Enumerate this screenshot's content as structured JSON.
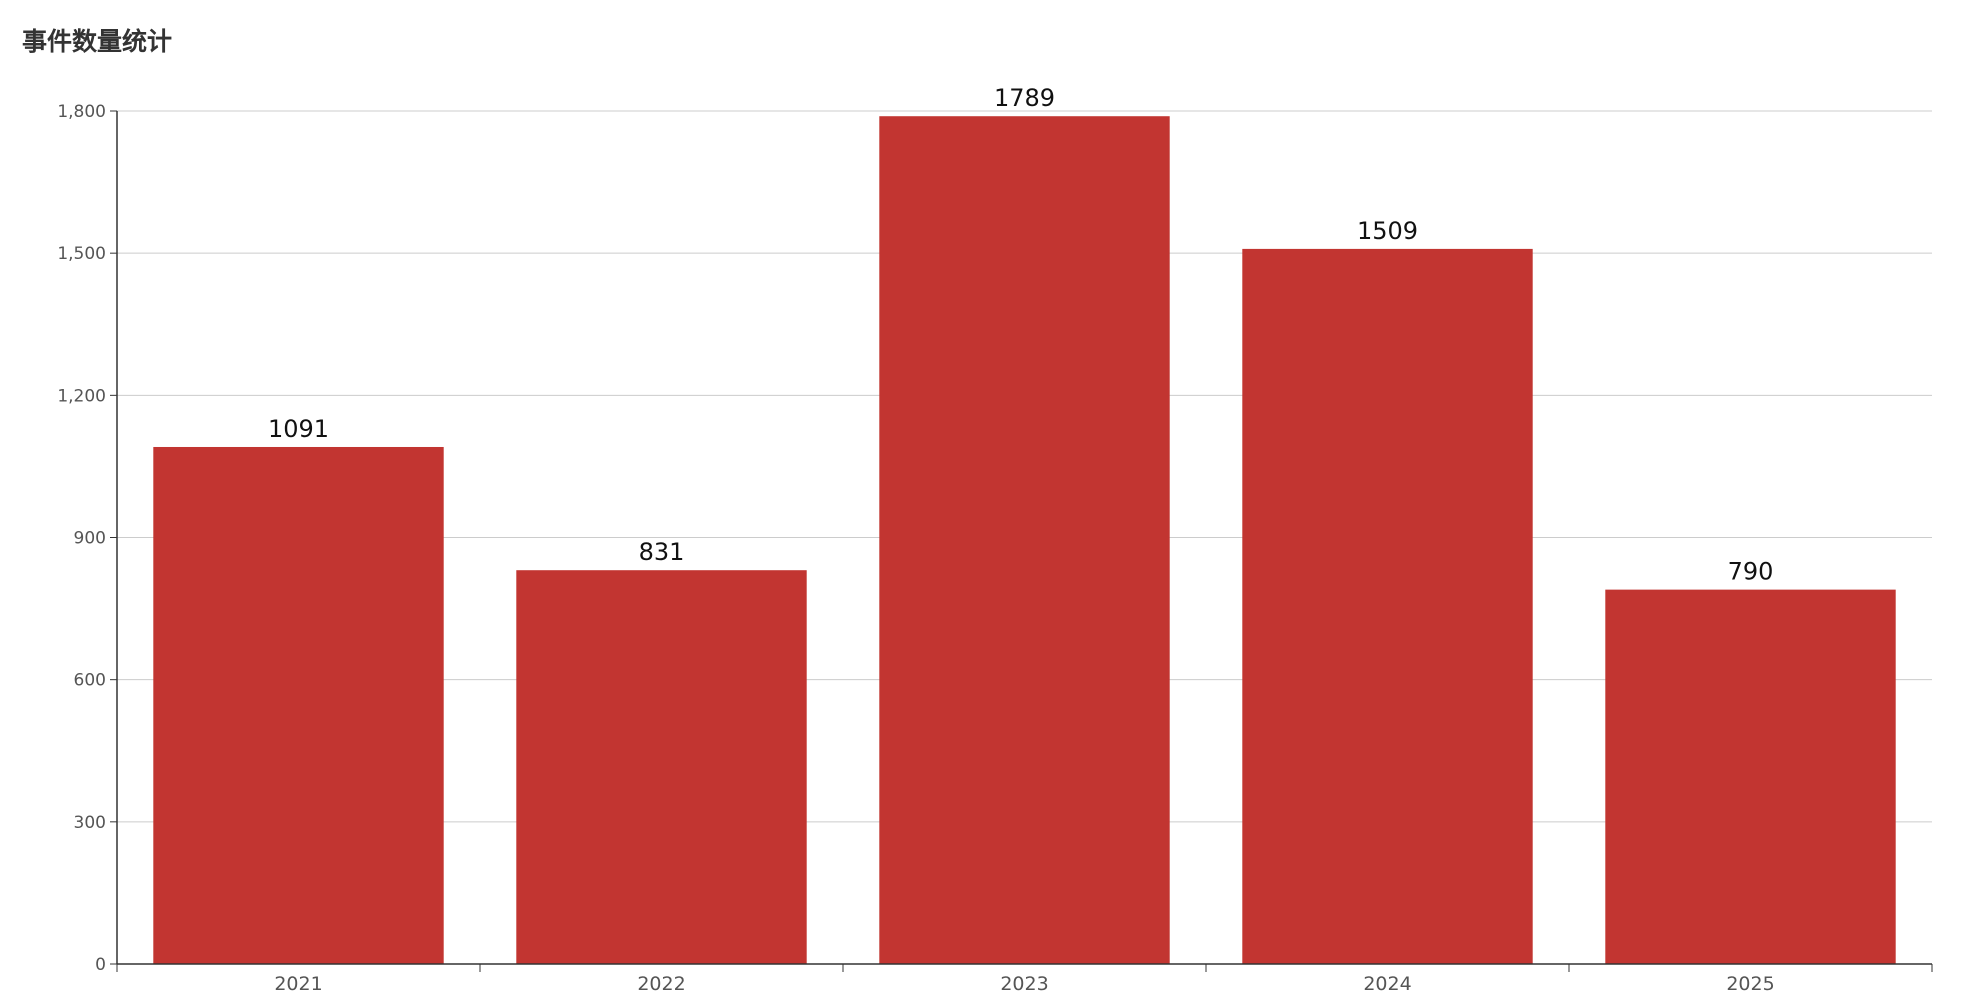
{
  "chart_data": {
    "type": "bar",
    "title": "事件数量统计",
    "categories": [
      "2021",
      "2022",
      "2023",
      "2024",
      "2025"
    ],
    "values": [
      1091,
      831,
      1789,
      1509,
      790
    ],
    "yticks": [
      "0",
      "300",
      "600",
      "900",
      "1,200",
      "1,500",
      "1,800"
    ],
    "ylim": [
      0,
      1800
    ],
    "grid": true,
    "bar_color": "#c23531",
    "show_data_labels": true
  }
}
